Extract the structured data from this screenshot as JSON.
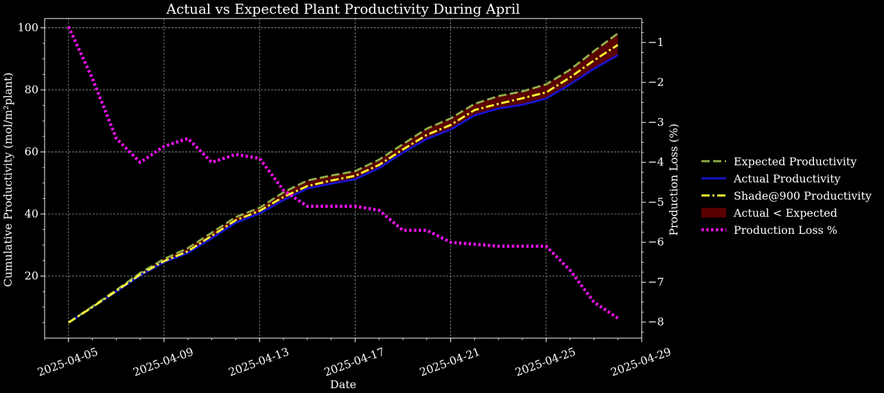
{
  "chart_data": {
    "type": "line",
    "title": "Actual vs Expected Plant Productivity During April",
    "xlabel": "Date",
    "ylabel": "Cumulative Productivity (mol/m²plant)",
    "y2label": "Production Loss (%)",
    "xlim": [
      "2025-04-04",
      "2025-04-29"
    ],
    "ylim": [
      0,
      103
    ],
    "y2lim": [
      -8.4,
      -0.4
    ],
    "x_ticks": [
      "2025-04-05",
      "2025-04-09",
      "2025-04-13",
      "2025-04-17",
      "2025-04-21",
      "2025-04-25",
      "2025-04-29"
    ],
    "y_ticks": [
      20,
      40,
      60,
      80,
      100
    ],
    "y2_ticks": [
      -1,
      -2,
      -3,
      -4,
      -5,
      -6,
      -7,
      -8
    ],
    "grid": true,
    "legend_position": "right, outside",
    "x": [
      "2025-04-05",
      "2025-04-06",
      "2025-04-07",
      "2025-04-08",
      "2025-04-09",
      "2025-04-10",
      "2025-04-11",
      "2025-04-12",
      "2025-04-13",
      "2025-04-14",
      "2025-04-15",
      "2025-04-16",
      "2025-04-17",
      "2025-04-18",
      "2025-04-19",
      "2025-04-20",
      "2025-04-21",
      "2025-04-22",
      "2025-04-23",
      "2025-04-24",
      "2025-04-25",
      "2025-04-26",
      "2025-04-27",
      "2025-04-28"
    ],
    "series": [
      {
        "name": "Expected Productivity",
        "axis": "left",
        "style": "dashed",
        "color": "#8fb04a",
        "values": [
          5.0,
          10.2,
          15.5,
          21.0,
          25.5,
          29.0,
          34.0,
          39.0,
          42.0,
          47.0,
          50.8,
          52.4,
          53.8,
          57.5,
          62.5,
          67.5,
          70.8,
          75.5,
          78.0,
          79.5,
          81.8,
          86.5,
          92.5,
          98.2
        ]
      },
      {
        "name": "Actual Productivity",
        "axis": "left",
        "style": "solid",
        "color": "#1515d0",
        "values": [
          5.0,
          10.0,
          15.0,
          20.2,
          24.5,
          27.5,
          32.2,
          37.2,
          40.2,
          44.5,
          48.2,
          49.8,
          51.2,
          54.8,
          59.8,
          64.2,
          67.2,
          71.8,
          74.0,
          75.2,
          77.2,
          81.8,
          86.8,
          91.2
        ]
      },
      {
        "name": "Shade@900 Productivity",
        "axis": "left",
        "style": "dashdot",
        "color": "#ffff33",
        "values": [
          5.0,
          10.0,
          15.2,
          20.5,
          24.8,
          28.0,
          33.0,
          38.0,
          41.0,
          45.5,
          49.0,
          50.8,
          52.3,
          55.8,
          60.8,
          65.5,
          68.7,
          73.5,
          75.5,
          77.3,
          79.2,
          84.0,
          89.5,
          94.5
        ]
      },
      {
        "name": "Production Loss %",
        "axis": "right",
        "style": "dotted",
        "color": "#ee11ee",
        "values": [
          -0.6,
          -1.9,
          -3.4,
          -4.0,
          -3.6,
          -3.4,
          -4.0,
          -3.8,
          -3.9,
          -4.7,
          -5.1,
          -5.1,
          -5.1,
          -5.2,
          -5.7,
          -5.7,
          -6.0,
          -6.05,
          -6.1,
          -6.1,
          -6.1,
          -6.7,
          -7.5,
          -7.9
        ]
      }
    ],
    "fill_between": {
      "name": "Actual < Expected",
      "color": "#5a0000",
      "lower": "Actual Productivity",
      "upper": "Expected Productivity"
    },
    "legend": [
      "Expected Productivity",
      "Actual Productivity",
      "Shade@900 Productivity",
      "Actual < Expected",
      "Production Loss %"
    ]
  }
}
